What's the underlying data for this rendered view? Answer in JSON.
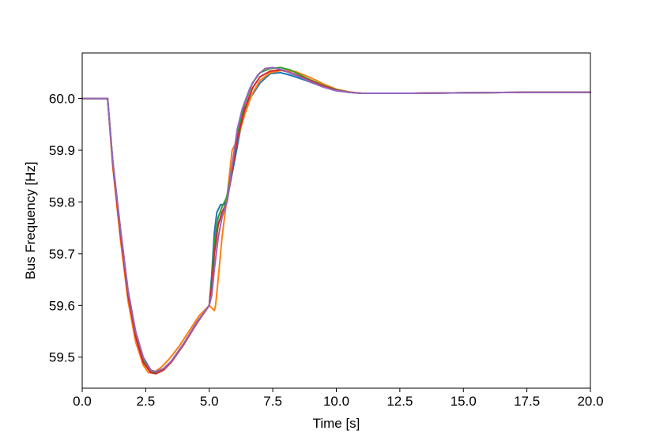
{
  "chart_data": {
    "type": "line",
    "title": "",
    "xlabel": "Time [s]",
    "ylabel": "Bus Frequency [Hz]",
    "xlim": [
      0.0,
      20.0
    ],
    "ylim": [
      59.44,
      60.088
    ],
    "xticks": [
      0.0,
      2.5,
      5.0,
      7.5,
      10.0,
      12.5,
      15.0,
      17.5,
      20.0
    ],
    "xtick_labels": [
      "0.0",
      "2.5",
      "5.0",
      "7.5",
      "10.0",
      "12.5",
      "15.0",
      "17.5",
      "20.0"
    ],
    "yticks": [
      59.5,
      59.6,
      59.7,
      59.8,
      59.9,
      60.0
    ],
    "ytick_labels": [
      "59.5",
      "59.6",
      "59.7",
      "59.8",
      "59.9",
      "60.0"
    ],
    "grid": false,
    "legend": "none",
    "series": [
      {
        "color": "#1f77b4",
        "x": [
          0.0,
          1.0,
          1.2,
          1.5,
          1.8,
          2.1,
          2.4,
          2.7,
          2.9,
          3.2,
          3.5,
          4.0,
          4.5,
          5.0,
          5.1,
          5.2,
          5.3,
          5.45,
          5.6,
          5.8,
          6.0,
          6.3,
          6.6,
          7.0,
          7.4,
          7.8,
          8.2,
          8.8,
          9.5,
          10.0,
          10.5,
          11.0,
          12.0,
          13.0,
          15.0,
          17.5,
          20.0
        ],
        "y": [
          60.0,
          60.0,
          59.88,
          59.75,
          59.63,
          59.55,
          59.5,
          59.475,
          59.47,
          59.475,
          59.49,
          59.525,
          59.565,
          59.6,
          59.66,
          59.74,
          59.78,
          59.795,
          59.795,
          59.83,
          59.88,
          59.96,
          60.0,
          60.03,
          60.048,
          60.05,
          60.045,
          60.035,
          60.022,
          60.015,
          60.012,
          60.01,
          60.01,
          60.01,
          60.011,
          60.012,
          60.012
        ]
      },
      {
        "color": "#ff7f0e",
        "x": [
          0.0,
          1.0,
          1.2,
          1.5,
          1.8,
          2.1,
          2.4,
          2.6,
          2.8,
          3.1,
          3.4,
          3.8,
          4.2,
          4.6,
          5.0,
          5.1,
          5.2,
          5.25,
          5.35,
          5.5,
          5.7,
          5.9,
          6.1,
          6.4,
          6.7,
          7.0,
          7.4,
          7.9,
          8.4,
          9.0,
          9.5,
          10.0,
          10.5,
          11.0,
          12.0,
          13.0,
          15.0,
          17.5,
          20.0
        ],
        "y": [
          60.0,
          60.0,
          59.87,
          59.73,
          59.61,
          59.53,
          59.485,
          59.47,
          59.47,
          59.48,
          59.495,
          59.52,
          59.55,
          59.58,
          59.6,
          59.595,
          59.59,
          59.6,
          59.65,
          59.73,
          59.81,
          59.9,
          59.92,
          59.97,
          60.01,
          60.035,
          60.05,
          60.055,
          60.052,
          60.04,
          60.028,
          60.018,
          60.013,
          60.01,
          60.01,
          60.01,
          60.011,
          60.012,
          60.012
        ]
      },
      {
        "color": "#2ca02c",
        "x": [
          0.0,
          1.0,
          1.2,
          1.5,
          1.8,
          2.1,
          2.4,
          2.7,
          2.9,
          3.2,
          3.5,
          4.0,
          4.5,
          5.0,
          5.1,
          5.2,
          5.35,
          5.5,
          5.7,
          5.9,
          6.1,
          6.4,
          6.7,
          7.0,
          7.4,
          7.8,
          8.2,
          8.8,
          9.5,
          10.0,
          10.5,
          11.0,
          12.0,
          13.0,
          15.0,
          17.5,
          20.0
        ],
        "y": [
          60.0,
          60.0,
          59.88,
          59.745,
          59.625,
          59.545,
          59.495,
          59.472,
          59.47,
          59.476,
          59.49,
          59.525,
          59.565,
          59.6,
          59.65,
          59.72,
          59.77,
          59.79,
          59.81,
          59.87,
          59.93,
          59.99,
          60.03,
          60.05,
          60.058,
          60.06,
          60.055,
          60.04,
          60.025,
          60.017,
          60.012,
          60.01,
          60.01,
          60.01,
          60.011,
          60.012,
          60.012
        ]
      },
      {
        "color": "#d62728",
        "x": [
          0.0,
          1.0,
          1.2,
          1.5,
          1.8,
          2.1,
          2.4,
          2.7,
          2.9,
          3.2,
          3.5,
          4.0,
          4.5,
          5.0,
          5.1,
          5.2,
          5.35,
          5.5,
          5.7,
          5.9,
          6.1,
          6.4,
          6.7,
          7.0,
          7.4,
          7.8,
          8.2,
          8.8,
          9.5,
          10.0,
          10.5,
          11.0,
          12.0,
          13.0,
          15.0,
          17.5,
          20.0
        ],
        "y": [
          60.0,
          60.0,
          59.875,
          59.74,
          59.62,
          59.54,
          59.49,
          59.47,
          59.468,
          59.475,
          59.49,
          59.525,
          59.565,
          59.6,
          59.64,
          59.7,
          59.755,
          59.78,
          59.8,
          59.86,
          59.92,
          59.98,
          60.02,
          60.042,
          60.053,
          60.055,
          60.05,
          60.038,
          60.024,
          60.016,
          60.012,
          60.01,
          60.01,
          60.01,
          60.011,
          60.012,
          60.012
        ]
      },
      {
        "color": "#9467bd",
        "x": [
          0.0,
          1.0,
          1.2,
          1.5,
          1.8,
          2.1,
          2.4,
          2.7,
          2.9,
          3.2,
          3.5,
          4.0,
          4.5,
          5.0,
          5.1,
          5.2,
          5.35,
          5.5,
          5.7,
          5.9,
          6.1,
          6.3,
          6.6,
          6.9,
          7.2,
          7.5,
          7.9,
          8.4,
          9.0,
          9.5,
          10.0,
          10.5,
          11.0,
          12.0,
          13.0,
          15.0,
          17.5,
          20.0
        ],
        "y": [
          60.0,
          60.0,
          59.88,
          59.75,
          59.63,
          59.55,
          59.5,
          59.475,
          59.472,
          59.478,
          59.492,
          59.527,
          59.567,
          59.6,
          59.62,
          59.67,
          59.73,
          59.77,
          59.8,
          59.87,
          59.94,
          59.98,
          60.02,
          60.045,
          60.058,
          60.06,
          60.055,
          60.045,
          60.032,
          60.022,
          60.015,
          60.012,
          60.01,
          60.01,
          60.01,
          60.011,
          60.012,
          60.012
        ]
      }
    ]
  }
}
